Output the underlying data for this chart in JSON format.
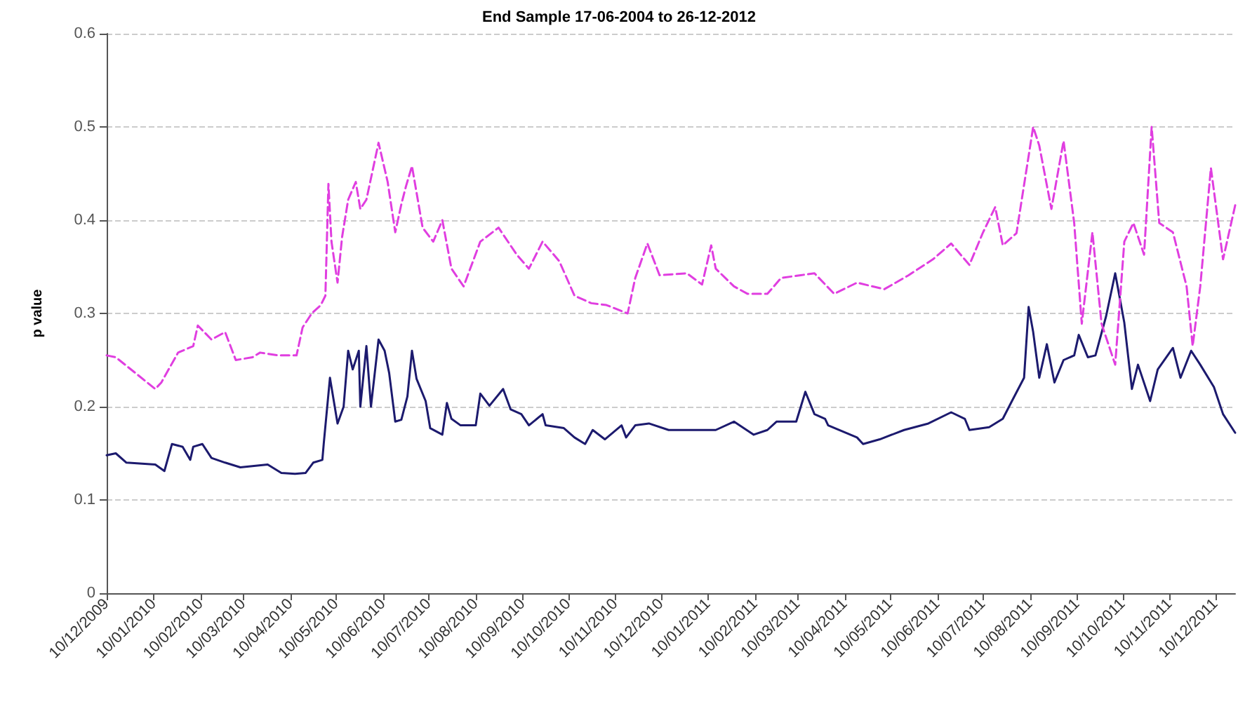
{
  "chart_data": {
    "type": "line",
    "title": "End Sample 17-06-2004 to 26-12-2012",
    "ylabel": "p value",
    "xlim": [
      "2009-12-10",
      "2011-12-23"
    ],
    "xticks": [
      {
        "value": "2009-12-10",
        "label": "10/12/2009"
      },
      {
        "value": "2010-01-10",
        "label": "10/01/2010"
      },
      {
        "value": "2010-02-10",
        "label": "10/02/2010"
      },
      {
        "value": "2010-03-10",
        "label": "10/03/2010"
      },
      {
        "value": "2010-04-10",
        "label": "10/04/2010"
      },
      {
        "value": "2010-05-10",
        "label": "10/05/2010"
      },
      {
        "value": "2010-06-10",
        "label": "10/06/2010"
      },
      {
        "value": "2010-07-10",
        "label": "10/07/2010"
      },
      {
        "value": "2010-08-10",
        "label": "10/08/2010"
      },
      {
        "value": "2010-09-10",
        "label": "10/09/2010"
      },
      {
        "value": "2010-10-10",
        "label": "10/10/2010"
      },
      {
        "value": "2010-11-10",
        "label": "10/11/2010"
      },
      {
        "value": "2010-12-10",
        "label": "10/12/2010"
      },
      {
        "value": "2011-01-10",
        "label": "10/01/2011"
      },
      {
        "value": "2011-02-10",
        "label": "10/02/2011"
      },
      {
        "value": "2011-03-10",
        "label": "10/03/2011"
      },
      {
        "value": "2011-04-10",
        "label": "10/04/2011"
      },
      {
        "value": "2011-05-10",
        "label": "10/05/2011"
      },
      {
        "value": "2011-06-10",
        "label": "10/06/2011"
      },
      {
        "value": "2011-07-10",
        "label": "10/07/2011"
      },
      {
        "value": "2011-08-10",
        "label": "10/08/2011"
      },
      {
        "value": "2011-09-10",
        "label": "10/09/2011"
      },
      {
        "value": "2011-10-10",
        "label": "10/10/2011"
      },
      {
        "value": "2011-11-10",
        "label": "10/11/2011"
      },
      {
        "value": "2011-12-10",
        "label": "10/12/2011"
      }
    ],
    "ylim": [
      0,
      0.6
    ],
    "yticks": [
      0,
      0.1,
      0.2,
      0.3,
      0.4,
      0.5,
      0.6
    ],
    "grid": "y",
    "marker": "none",
    "series": [
      {
        "color": "#1c1a6e",
        "line_style": "solid",
        "x": [
          "2009-12-10",
          "2009-12-16",
          "2009-12-23",
          "2010-01-11",
          "2010-01-17",
          "2010-01-22",
          "2010-01-29",
          "2010-02-03",
          "2010-02-05",
          "2010-02-11",
          "2010-02-17",
          "2010-02-26",
          "2010-03-08",
          "2010-03-26",
          "2010-04-04",
          "2010-04-13",
          "2010-04-20",
          "2010-04-25",
          "2010-05-01",
          "2010-05-02",
          "2010-05-06",
          "2010-05-11",
          "2010-05-15",
          "2010-05-18",
          "2010-05-21",
          "2010-05-25",
          "2010-05-26",
          "2010-05-30",
          "2010-06-02",
          "2010-06-07",
          "2010-06-11",
          "2010-06-14",
          "2010-06-18",
          "2010-06-22",
          "2010-06-26",
          "2010-06-29",
          "2010-07-02",
          "2010-07-08",
          "2010-07-11",
          "2010-07-19",
          "2010-07-22",
          "2010-07-25",
          "2010-07-31",
          "2010-08-10",
          "2010-08-13",
          "2010-08-19",
          "2010-08-28",
          "2010-09-02",
          "2010-09-09",
          "2010-09-14",
          "2010-09-23",
          "2010-09-25",
          "2010-10-07",
          "2010-10-14",
          "2010-10-21",
          "2010-10-26",
          "2010-11-03",
          "2010-11-14",
          "2010-11-17",
          "2010-11-23",
          "2010-12-02",
          "2010-12-15",
          "2010-12-27",
          "2011-01-15",
          "2011-01-27",
          "2011-02-09",
          "2011-02-18",
          "2011-02-24",
          "2011-03-09",
          "2011-03-15",
          "2011-03-21",
          "2011-03-28",
          "2011-03-30",
          "2011-04-18",
          "2011-04-22",
          "2011-05-03",
          "2011-05-19",
          "2011-06-04",
          "2011-06-19",
          "2011-06-28",
          "2011-07-01",
          "2011-07-14",
          "2011-07-23",
          "2011-07-29",
          "2011-08-06",
          "2011-08-09",
          "2011-08-12",
          "2011-08-16",
          "2011-08-21",
          "2011-08-26",
          "2011-09-01",
          "2011-09-08",
          "2011-09-11",
          "2011-09-17",
          "2011-09-22",
          "2011-09-29",
          "2011-10-05",
          "2011-10-11",
          "2011-10-16",
          "2011-10-20",
          "2011-10-28",
          "2011-11-02",
          "2011-11-12",
          "2011-11-17",
          "2011-11-24",
          "2011-11-30",
          "2011-12-09",
          "2011-12-15",
          "2011-12-23"
        ],
        "values": [
          0.148,
          0.15,
          0.14,
          0.138,
          0.131,
          0.16,
          0.157,
          0.143,
          0.157,
          0.16,
          0.145,
          0.14,
          0.135,
          0.138,
          0.129,
          0.128,
          0.129,
          0.14,
          0.143,
          0.162,
          0.231,
          0.182,
          0.2,
          0.26,
          0.24,
          0.26,
          0.2,
          0.265,
          0.2,
          0.272,
          0.26,
          0.236,
          0.184,
          0.186,
          0.211,
          0.26,
          0.23,
          0.206,
          0.177,
          0.17,
          0.204,
          0.187,
          0.18,
          0.18,
          0.214,
          0.201,
          0.219,
          0.197,
          0.192,
          0.18,
          0.192,
          0.18,
          0.177,
          0.167,
          0.16,
          0.175,
          0.165,
          0.18,
          0.167,
          0.18,
          0.182,
          0.175,
          0.175,
          0.175,
          0.184,
          0.17,
          0.175,
          0.184,
          0.184,
          0.216,
          0.192,
          0.187,
          0.18,
          0.167,
          0.16,
          0.165,
          0.175,
          0.182,
          0.194,
          0.187,
          0.175,
          0.178,
          0.187,
          0.206,
          0.231,
          0.307,
          0.28,
          0.231,
          0.267,
          0.226,
          0.25,
          0.255,
          0.277,
          0.253,
          0.255,
          0.297,
          0.343,
          0.29,
          0.219,
          0.245,
          0.206,
          0.24,
          0.263,
          0.231,
          0.26,
          0.245,
          0.221,
          0.192,
          0.172
        ]
      },
      {
        "color": "#e03ee0",
        "line_style": "dashed",
        "x": [
          "2009-12-10",
          "2009-12-16",
          "2009-12-29",
          "2010-01-11",
          "2010-01-15",
          "2010-01-26",
          "2010-02-05",
          "2010-02-08",
          "2010-02-17",
          "2010-02-26",
          "2010-03-05",
          "2010-03-16",
          "2010-03-21",
          "2010-04-02",
          "2010-04-14",
          "2010-04-18",
          "2010-04-24",
          "2010-04-30",
          "2010-05-03",
          "2010-05-05",
          "2010-05-07",
          "2010-05-11",
          "2010-05-14",
          "2010-05-18",
          "2010-05-23",
          "2010-05-26",
          "2010-05-30",
          "2010-06-07",
          "2010-06-13",
          "2010-06-18",
          "2010-06-22",
          "2010-06-25",
          "2010-06-29",
          "2010-07-06",
          "2010-07-13",
          "2010-07-19",
          "2010-07-25",
          "2010-08-02",
          "2010-08-13",
          "2010-08-25",
          "2010-09-06",
          "2010-09-14",
          "2010-09-23",
          "2010-10-04",
          "2010-10-14",
          "2010-10-25",
          "2010-11-04",
          "2010-11-18",
          "2010-11-23",
          "2010-12-01",
          "2010-12-09",
          "2010-12-27",
          "2011-01-06",
          "2011-01-12",
          "2011-01-15",
          "2011-01-27",
          "2011-02-05",
          "2011-02-18",
          "2011-02-27",
          "2011-03-12",
          "2011-03-21",
          "2011-04-03",
          "2011-04-18",
          "2011-05-06",
          "2011-05-22",
          "2011-06-07",
          "2011-06-19",
          "2011-07-01",
          "2011-07-10",
          "2011-07-18",
          "2011-07-23",
          "2011-08-01",
          "2011-08-12",
          "2011-08-16",
          "2011-08-24",
          "2011-09-01",
          "2011-09-08",
          "2011-09-13",
          "2011-09-20",
          "2011-09-26",
          "2011-10-05",
          "2011-10-11",
          "2011-10-17",
          "2011-10-24",
          "2011-10-29",
          "2011-11-03",
          "2011-11-12",
          "2011-11-21",
          "2011-11-25",
          "2011-11-30",
          "2011-12-07",
          "2011-12-15",
          "2011-12-23"
        ],
        "values": [
          0.255,
          0.253,
          0.236,
          0.219,
          0.226,
          0.258,
          0.265,
          0.287,
          0.272,
          0.28,
          0.25,
          0.253,
          0.258,
          0.255,
          0.255,
          0.285,
          0.3,
          0.309,
          0.319,
          0.439,
          0.377,
          0.333,
          0.382,
          0.422,
          0.441,
          0.412,
          0.422,
          0.483,
          0.441,
          0.387,
          0.417,
          0.436,
          0.458,
          0.392,
          0.377,
          0.4,
          0.348,
          0.329,
          0.377,
          0.392,
          0.363,
          0.348,
          0.377,
          0.356,
          0.319,
          0.311,
          0.309,
          0.3,
          0.338,
          0.375,
          0.341,
          0.343,
          0.331,
          0.373,
          0.348,
          0.329,
          0.321,
          0.321,
          0.338,
          0.341,
          0.343,
          0.321,
          0.333,
          0.326,
          0.341,
          0.358,
          0.375,
          0.352,
          0.387,
          0.414,
          0.373,
          0.386,
          0.5,
          0.48,
          0.412,
          0.485,
          0.397,
          0.289,
          0.387,
          0.289,
          0.245,
          0.377,
          0.397,
          0.363,
          0.5,
          0.397,
          0.387,
          0.329,
          0.265,
          0.329,
          0.456,
          0.358,
          0.416
        ]
      }
    ]
  }
}
